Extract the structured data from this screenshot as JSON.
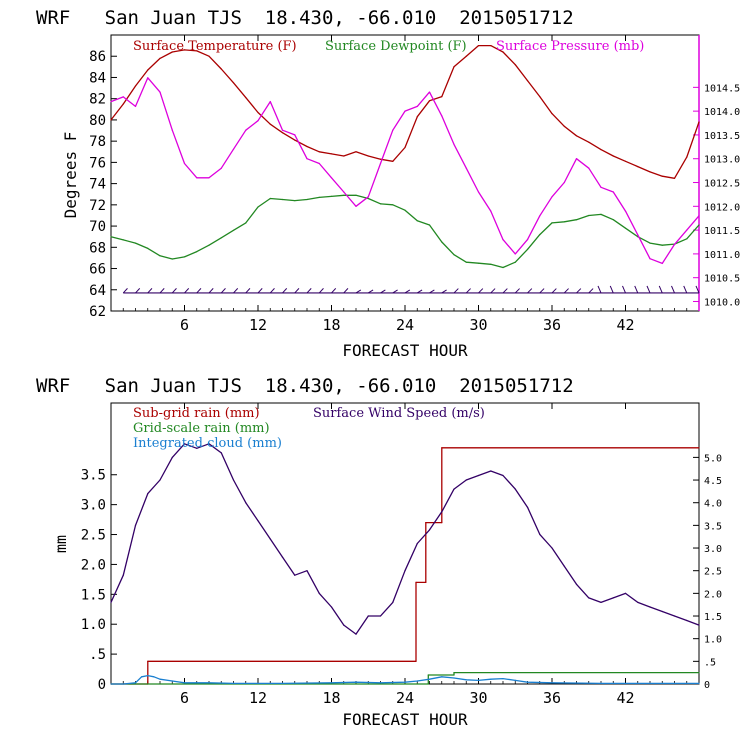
{
  "chart_data": [
    {
      "type": "line",
      "title": "WRF   San Juan TJS  18.430, -66.010  2015051712",
      "xlabel": "FORECAST HOUR",
      "ylabel": "Degrees F",
      "xlim": [
        0,
        48
      ],
      "ylim_left": [
        62,
        88
      ],
      "ylim_right": [
        1009.8,
        1015.6
      ],
      "x_ticks": [
        6,
        12,
        18,
        24,
        30,
        36,
        42
      ],
      "x_tick_labels": [
        "6",
        "12",
        "18",
        "24",
        "30",
        "36",
        "42"
      ],
      "y_ticks": [
        62,
        64,
        66,
        68,
        70,
        72,
        74,
        76,
        78,
        80,
        82,
        84,
        86
      ],
      "y_tick_labels": [
        "62",
        "64",
        "66",
        "68",
        "70",
        "72",
        "74",
        "76",
        "78",
        "80",
        "82",
        "84",
        "86"
      ],
      "y2_ticks": [
        1010.0,
        1010.5,
        1011.0,
        1011.5,
        1012.0,
        1012.5,
        1013.0,
        1013.5,
        1014.0,
        1014.5
      ],
      "y2_tick_labels": [
        "1010.0",
        "1010.5",
        "1011.0",
        "1011.5",
        "1012.0",
        "1012.5",
        "1013.0",
        "1013.5",
        "1014.0",
        "1014.5"
      ],
      "legend_position": "top",
      "wind_barb_level": 63.7,
      "series": [
        {
          "name": "Surface Temperature (F)",
          "color": "#aa0000",
          "axis": "left",
          "x": [
            0,
            1,
            2,
            3,
            4,
            5,
            6,
            7,
            8,
            9,
            10,
            11,
            12,
            13,
            14,
            15,
            16,
            17,
            18,
            19,
            20,
            21,
            22,
            23,
            24,
            25,
            26,
            27,
            28,
            29,
            30,
            31,
            32,
            33,
            34,
            35,
            36,
            37,
            38,
            39,
            40,
            41,
            42,
            43,
            44,
            45,
            46,
            47,
            48
          ],
          "values": [
            80.0,
            81.5,
            83.2,
            84.7,
            85.8,
            86.4,
            86.6,
            86.5,
            86.0,
            84.8,
            83.5,
            82.1,
            80.7,
            79.6,
            78.8,
            78.1,
            77.5,
            77.0,
            76.8,
            76.6,
            77.0,
            76.6,
            76.3,
            76.1,
            77.4,
            80.3,
            81.8,
            82.2,
            85.0,
            86.0,
            87.0,
            87.0,
            86.4,
            85.2,
            83.7,
            82.2,
            80.6,
            79.4,
            78.5,
            77.9,
            77.2,
            76.6,
            76.1,
            75.6,
            75.1,
            74.7,
            74.5,
            76.5,
            79.8
          ]
        },
        {
          "name": "Surface Dewpoint (F)",
          "color": "#228822",
          "axis": "left",
          "x": [
            0,
            1,
            2,
            3,
            4,
            5,
            6,
            7,
            8,
            9,
            10,
            11,
            12,
            13,
            14,
            15,
            16,
            17,
            18,
            19,
            20,
            21,
            22,
            23,
            24,
            25,
            26,
            27,
            28,
            29,
            30,
            31,
            32,
            33,
            34,
            35,
            36,
            37,
            38,
            39,
            40,
            41,
            42,
            43,
            44,
            45,
            46,
            47,
            48
          ],
          "values": [
            69.0,
            68.7,
            68.4,
            67.9,
            67.2,
            66.9,
            67.1,
            67.6,
            68.2,
            68.9,
            69.6,
            70.3,
            71.8,
            72.6,
            72.5,
            72.4,
            72.5,
            72.7,
            72.8,
            72.9,
            72.9,
            72.6,
            72.1,
            72.0,
            71.5,
            70.5,
            70.1,
            68.5,
            67.3,
            66.6,
            66.5,
            66.4,
            66.1,
            66.6,
            67.8,
            69.2,
            70.3,
            70.4,
            70.6,
            71.0,
            71.1,
            70.6,
            69.8,
            69.0,
            68.4,
            68.2,
            68.3,
            68.8,
            70.1
          ]
        },
        {
          "name": "Surface Pressure (mb)",
          "color": "#dd00dd",
          "axis": "right",
          "x": [
            0,
            1,
            2,
            3,
            4,
            5,
            6,
            7,
            8,
            9,
            10,
            11,
            12,
            13,
            14,
            15,
            16,
            17,
            18,
            19,
            20,
            21,
            22,
            23,
            24,
            25,
            26,
            27,
            28,
            29,
            30,
            31,
            32,
            33,
            34,
            35,
            36,
            37,
            38,
            39,
            40,
            41,
            42,
            43,
            44,
            45,
            46,
            47,
            48
          ],
          "values": [
            1014.2,
            1014.3,
            1014.1,
            1014.7,
            1014.4,
            1013.6,
            1012.9,
            1012.6,
            1012.6,
            1012.8,
            1013.2,
            1013.6,
            1013.8,
            1014.2,
            1013.6,
            1013.5,
            1013.0,
            1012.9,
            1012.6,
            1012.3,
            1012.0,
            1012.2,
            1012.9,
            1013.6,
            1014.0,
            1014.1,
            1014.4,
            1013.9,
            1013.3,
            1012.8,
            1012.3,
            1011.9,
            1011.3,
            1011.0,
            1011.3,
            1011.8,
            1012.2,
            1012.5,
            1013.0,
            1012.8,
            1012.4,
            1012.3,
            1011.9,
            1011.4,
            1010.9,
            1010.8,
            1011.2,
            1011.5,
            1011.8
          ]
        }
      ]
    },
    {
      "type": "line",
      "title": "WRF   San Juan TJS  18.430, -66.010  2015051712",
      "xlabel": "FORECAST HOUR",
      "ylabel": "mm",
      "xlim": [
        0,
        48
      ],
      "ylim_left": [
        0,
        4.7
      ],
      "ylim_right": [
        0,
        6.2
      ],
      "x_ticks": [
        6,
        12,
        18,
        24,
        30,
        36,
        42
      ],
      "x_tick_labels": [
        "6",
        "12",
        "18",
        "24",
        "30",
        "36",
        "42"
      ],
      "y_ticks": [
        0,
        0.5,
        1.0,
        1.5,
        2.0,
        2.5,
        3.0,
        3.5
      ],
      "y_tick_labels": [
        "0",
        ".5",
        "1.0",
        "1.5",
        "2.0",
        "2.5",
        "3.0",
        "3.5"
      ],
      "y2_ticks": [
        0,
        0.5,
        1.0,
        1.5,
        2.0,
        2.5,
        3.0,
        3.5,
        4.0,
        4.5,
        5.0
      ],
      "y2_tick_labels": [
        "0",
        ".5",
        "1.0",
        "1.5",
        "2.0",
        "2.5",
        "3.0",
        "3.5",
        "4.0",
        "4.5",
        "5.0"
      ],
      "legend_position": "top-left",
      "series": [
        {
          "name": "Sub-grid rain (mm)",
          "color": "#aa0000",
          "axis": "left",
          "x": [
            0,
            3.0,
            3.0,
            24.9,
            24.9,
            25.7,
            25.7,
            27.0,
            27.0,
            48
          ],
          "values": [
            0,
            0,
            0.38,
            0.38,
            1.7,
            1.7,
            2.7,
            2.7,
            3.95,
            3.95
          ]
        },
        {
          "name": "Grid-scale rain (mm)",
          "color": "#228822",
          "axis": "left",
          "x": [
            0,
            25.9,
            25.9,
            28.0,
            28.0,
            48
          ],
          "values": [
            0,
            0,
            0.15,
            0.15,
            0.19,
            0.19
          ]
        },
        {
          "name": "Integrated cloud (mm)",
          "color": "#1a7fd0",
          "axis": "left",
          "x": [
            0,
            1,
            2,
            2.5,
            3,
            3.5,
            4,
            5,
            6,
            8,
            10,
            14,
            18,
            20,
            22,
            24,
            25,
            26,
            27,
            28,
            29,
            30,
            31,
            32,
            33,
            34,
            36,
            40,
            44,
            48
          ],
          "values": [
            0.0,
            0.0,
            0.02,
            0.12,
            0.14,
            0.12,
            0.08,
            0.05,
            0.02,
            0.02,
            0.01,
            0.01,
            0.02,
            0.03,
            0.02,
            0.03,
            0.05,
            0.08,
            0.12,
            0.1,
            0.07,
            0.06,
            0.08,
            0.09,
            0.06,
            0.03,
            0.02,
            0.01,
            0.01,
            0.01
          ]
        },
        {
          "name": "Surface Wind Speed (m/s)",
          "color": "#330066",
          "axis": "right",
          "x": [
            0,
            1,
            2,
            3,
            4,
            5,
            6,
            7,
            8,
            9,
            10,
            11,
            12,
            13,
            14,
            15,
            16,
            17,
            18,
            19,
            20,
            21,
            22,
            23,
            24,
            25,
            26,
            27,
            28,
            29,
            30,
            31,
            32,
            33,
            34,
            35,
            36,
            37,
            38,
            39,
            40,
            41,
            42,
            43,
            44,
            45,
            46,
            47,
            48
          ],
          "values": [
            1.8,
            2.4,
            3.5,
            4.2,
            4.5,
            5.0,
            5.3,
            5.2,
            5.3,
            5.1,
            4.5,
            4.0,
            3.6,
            3.2,
            2.8,
            2.4,
            2.5,
            2.0,
            1.7,
            1.3,
            1.1,
            1.5,
            1.5,
            1.8,
            2.5,
            3.1,
            3.4,
            3.8,
            4.3,
            4.5,
            4.6,
            4.7,
            4.6,
            4.3,
            3.9,
            3.3,
            3.0,
            2.6,
            2.2,
            1.9,
            1.8,
            1.9,
            2.0,
            1.8,
            1.7,
            1.6,
            1.5,
            1.4,
            1.3
          ]
        }
      ]
    }
  ]
}
